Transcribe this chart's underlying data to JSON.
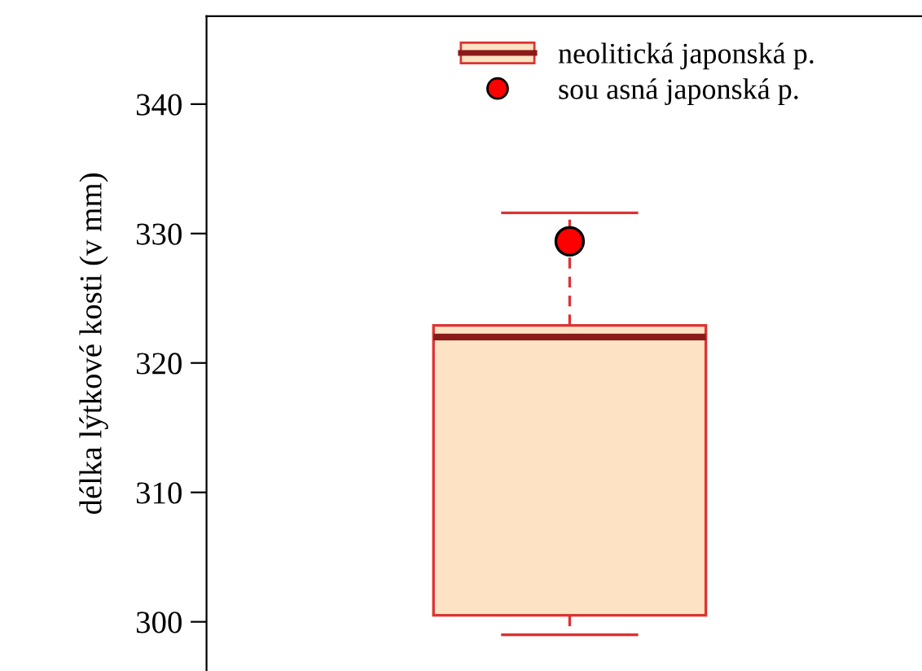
{
  "chart_data": {
    "type": "box",
    "categories": [
      null
    ],
    "ylabel": "délka lýtkové kosti (v mm)",
    "ylim": [
      296.2,
      346.8
    ],
    "yticks": [
      300,
      310,
      320,
      330,
      340
    ],
    "tick_labels": "y",
    "legend": "top right",
    "series": [
      {
        "name": "neolitická japonská p.",
        "color": "#fde3c3",
        "boxes": [
          {
            "low": 299.0,
            "q1": 300.5,
            "median": 322.0,
            "q3": 322.9,
            "high": 331.6
          }
        ]
      },
      {
        "type": "scatter",
        "name": "sou asná japonská p.",
        "color": "#ff0000",
        "values": [
          329.4
        ]
      }
    ]
  }
}
